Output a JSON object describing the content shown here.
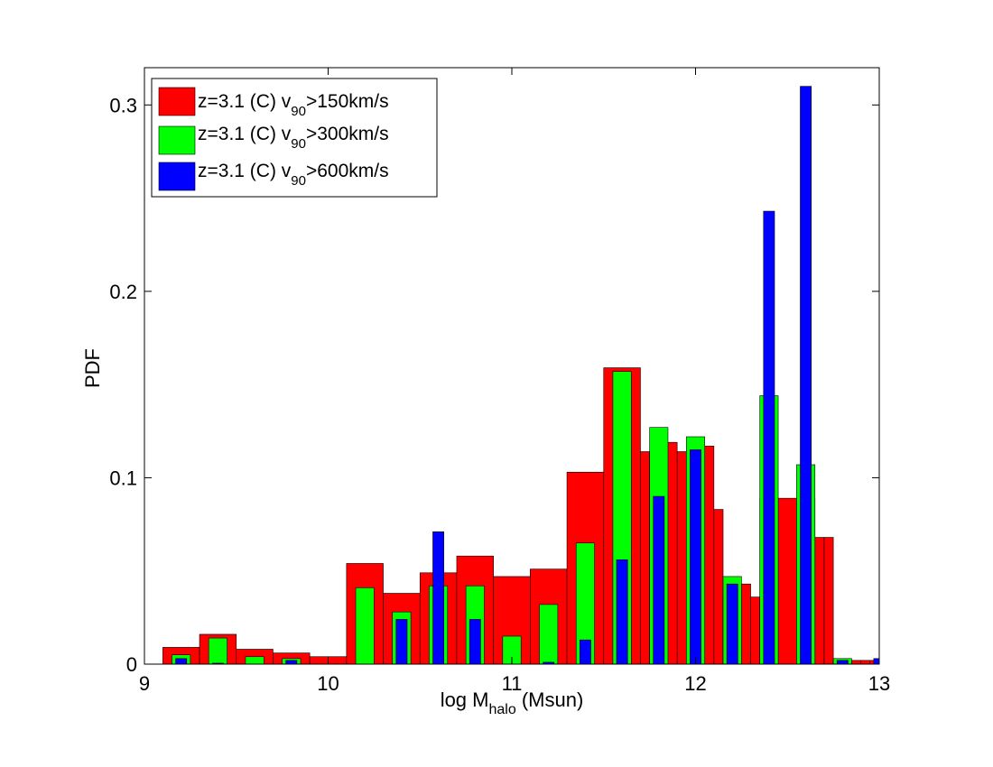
{
  "chart_data": {
    "type": "bar",
    "xlabel": {
      "prefix": "log M",
      "sub": "halo",
      "suffix": " (Msun)"
    },
    "ylabel": "PDF",
    "xlim": [
      9,
      13
    ],
    "ylim": [
      0,
      0.32
    ],
    "xticks": [
      9,
      10,
      11,
      12,
      13
    ],
    "yticks": [
      0,
      0.1,
      0.2,
      0.3
    ],
    "grid": false,
    "legend_position": "top-left",
    "series": [
      {
        "legend": {
          "prefix": "z=3.1 (C) v",
          "sub": "90",
          "suffix": ">150km/s"
        },
        "color": "#ff0000",
        "bars": [
          {
            "x0": 9.1,
            "x1": 9.3,
            "y": 0.009
          },
          {
            "x0": 9.3,
            "x1": 9.5,
            "y": 0.016
          },
          {
            "x0": 9.5,
            "x1": 9.7,
            "y": 0.008
          },
          {
            "x0": 9.7,
            "x1": 9.9,
            "y": 0.006
          },
          {
            "x0": 9.9,
            "x1": 10.1,
            "y": 0.004
          },
          {
            "x0": 10.1,
            "x1": 10.3,
            "y": 0.054
          },
          {
            "x0": 10.3,
            "x1": 10.5,
            "y": 0.038
          },
          {
            "x0": 10.5,
            "x1": 10.7,
            "y": 0.049
          },
          {
            "x0": 10.7,
            "x1": 10.9,
            "y": 0.058
          },
          {
            "x0": 10.9,
            "x1": 11.1,
            "y": 0.047
          },
          {
            "x0": 11.1,
            "x1": 11.3,
            "y": 0.051
          },
          {
            "x0": 11.3,
            "x1": 11.5,
            "y": 0.103
          },
          {
            "x0": 11.5,
            "x1": 11.7,
            "y": 0.159
          },
          {
            "x0": 11.7,
            "x1": 11.75,
            "y": 0.114
          },
          {
            "x0": 11.75,
            "x1": 11.8,
            "y": 0.114
          },
          {
            "x0": 11.8,
            "x1": 11.9,
            "y": 0.119
          },
          {
            "x0": 11.9,
            "x1": 11.95,
            "y": 0.114
          },
          {
            "x0": 11.95,
            "x1": 12.0,
            "y": 0.083
          },
          {
            "x0": 12.0,
            "x1": 12.1,
            "y": 0.117
          },
          {
            "x0": 12.1,
            "x1": 12.15,
            "y": 0.083
          },
          {
            "x0": 12.15,
            "x1": 12.2,
            "y": 0.036
          },
          {
            "x0": 12.2,
            "x1": 12.3,
            "y": 0.043
          },
          {
            "x0": 12.3,
            "x1": 12.35,
            "y": 0.036
          },
          {
            "x0": 12.35,
            "x1": 12.45,
            "y": 0.089
          },
          {
            "x0": 12.45,
            "x1": 12.55,
            "y": 0.089
          },
          {
            "x0": 12.55,
            "x1": 12.65,
            "y": 0.089
          },
          {
            "x0": 12.65,
            "x1": 12.7,
            "y": 0.068
          },
          {
            "x0": 12.7,
            "x1": 12.75,
            "y": 0.068
          },
          {
            "x0": 12.75,
            "x1": 12.85,
            "y": 0.002
          },
          {
            "x0": 12.85,
            "x1": 12.9,
            "y": 0.002
          },
          {
            "x0": 12.9,
            "x1": 12.95,
            "y": 0.002
          },
          {
            "x0": 12.95,
            "x1": 13.0,
            "y": 0.002
          }
        ]
      },
      {
        "legend": {
          "prefix": "z=3.1 (C) v",
          "sub": "90",
          "suffix": ">300km/s"
        },
        "color": "#00ff00",
        "bars": [
          {
            "x0": 9.15,
            "x1": 9.25,
            "y": 0.005
          },
          {
            "x0": 9.35,
            "x1": 9.45,
            "y": 0.014
          },
          {
            "x0": 9.55,
            "x1": 9.65,
            "y": 0.004
          },
          {
            "x0": 9.75,
            "x1": 9.85,
            "y": 0.003
          },
          {
            "x0": 10.15,
            "x1": 10.25,
            "y": 0.041
          },
          {
            "x0": 10.35,
            "x1": 10.45,
            "y": 0.028
          },
          {
            "x0": 10.55,
            "x1": 10.65,
            "y": 0.042
          },
          {
            "x0": 10.75,
            "x1": 10.85,
            "y": 0.042
          },
          {
            "x0": 10.95,
            "x1": 11.05,
            "y": 0.015
          },
          {
            "x0": 11.15,
            "x1": 11.25,
            "y": 0.032
          },
          {
            "x0": 11.35,
            "x1": 11.45,
            "y": 0.065
          },
          {
            "x0": 11.55,
            "x1": 11.65,
            "y": 0.157
          },
          {
            "x0": 11.75,
            "x1": 11.85,
            "y": 0.127
          },
          {
            "x0": 11.95,
            "x1": 12.05,
            "y": 0.122
          },
          {
            "x0": 12.15,
            "x1": 12.25,
            "y": 0.047
          },
          {
            "x0": 12.35,
            "x1": 12.45,
            "y": 0.144
          },
          {
            "x0": 12.55,
            "x1": 12.65,
            "y": 0.107
          },
          {
            "x0": 12.75,
            "x1": 12.85,
            "y": 0.003
          }
        ]
      },
      {
        "legend": {
          "prefix": "z=3.1 (C) v",
          "sub": "90",
          "suffix": ">600km/s"
        },
        "color": "#0000ff",
        "bars": [
          {
            "x0": 9.17,
            "x1": 9.23,
            "y": 0.003
          },
          {
            "x0": 9.37,
            "x1": 9.43,
            "y": 0.0005
          },
          {
            "x0": 9.77,
            "x1": 9.83,
            "y": 0.002
          },
          {
            "x0": 10.37,
            "x1": 10.43,
            "y": 0.024
          },
          {
            "x0": 10.57,
            "x1": 10.63,
            "y": 0.071
          },
          {
            "x0": 10.77,
            "x1": 10.83,
            "y": 0.024
          },
          {
            "x0": 11.17,
            "x1": 11.23,
            "y": 0.001
          },
          {
            "x0": 11.37,
            "x1": 11.43,
            "y": 0.013
          },
          {
            "x0": 11.57,
            "x1": 11.63,
            "y": 0.056
          },
          {
            "x0": 11.77,
            "x1": 11.83,
            "y": 0.09
          },
          {
            "x0": 11.97,
            "x1": 12.03,
            "y": 0.115
          },
          {
            "x0": 12.17,
            "x1": 12.23,
            "y": 0.043
          },
          {
            "x0": 12.37,
            "x1": 12.43,
            "y": 0.243
          },
          {
            "x0": 12.57,
            "x1": 12.63,
            "y": 0.31
          },
          {
            "x0": 12.77,
            "x1": 12.83,
            "y": 0.002
          },
          {
            "x0": 12.97,
            "x1": 13.0,
            "y": 0.003
          }
        ]
      }
    ]
  }
}
